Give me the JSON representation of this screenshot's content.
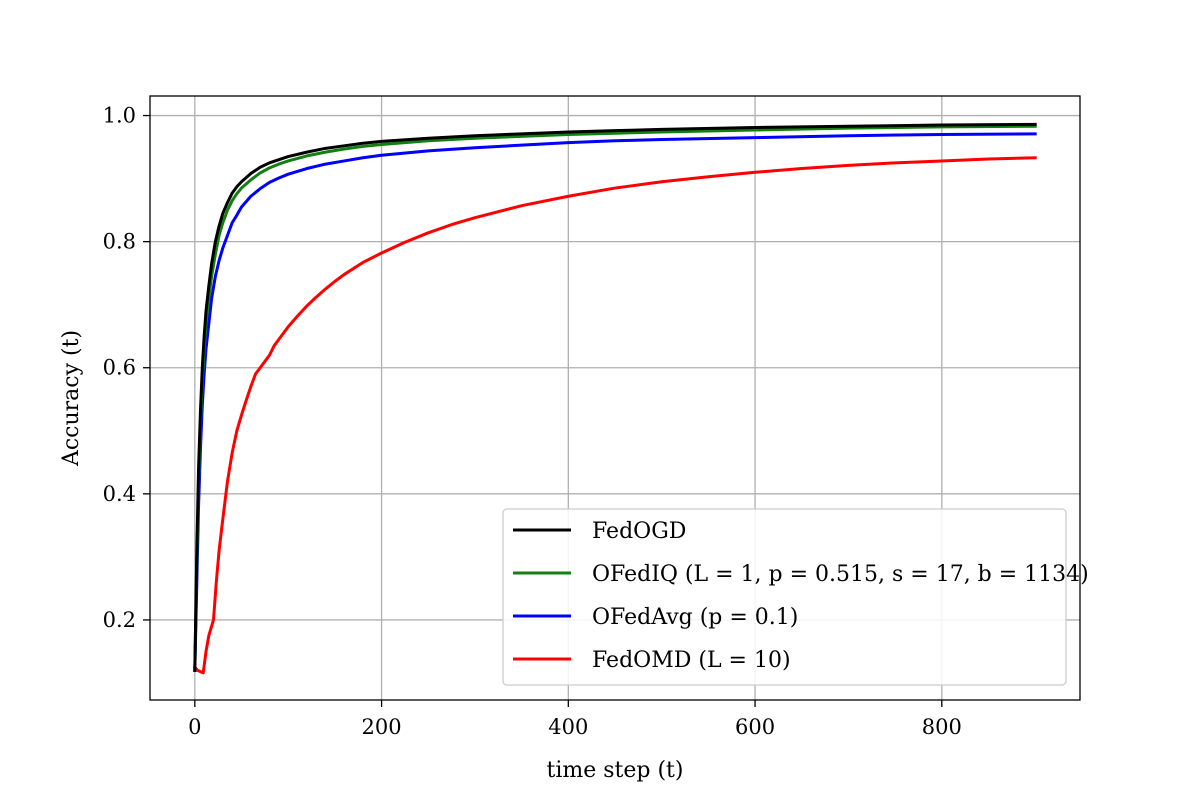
{
  "chart_data": {
    "type": "line",
    "title": "",
    "xlabel": "time step (t)",
    "ylabel": "Accuracy (t)",
    "xlim": [
      -48,
      948
    ],
    "ylim": [
      0.073,
      1.031
    ],
    "xticks": [
      0,
      200,
      400,
      600,
      800
    ],
    "yticks": [
      0.2,
      0.4,
      0.6,
      0.8,
      1.0
    ],
    "xtick_labels": [
      "0",
      "200",
      "400",
      "600",
      "800"
    ],
    "ytick_labels": [
      "0.2",
      "0.4",
      "0.6",
      "0.8",
      "1.0"
    ],
    "grid": true,
    "legend_position": "lower-right",
    "series": [
      {
        "name": "FedOGD",
        "color": "#000000",
        "x": [
          0,
          2,
          4,
          6,
          8,
          10,
          12,
          15,
          18,
          22,
          26,
          30,
          35,
          40,
          45,
          50,
          60,
          70,
          80,
          90,
          100,
          120,
          140,
          160,
          180,
          200,
          250,
          300,
          350,
          400,
          450,
          500,
          600,
          700,
          800,
          900
        ],
        "y": [
          0.12,
          0.3,
          0.44,
          0.53,
          0.6,
          0.65,
          0.69,
          0.73,
          0.765,
          0.8,
          0.825,
          0.845,
          0.862,
          0.877,
          0.887,
          0.895,
          0.908,
          0.918,
          0.925,
          0.93,
          0.935,
          0.942,
          0.948,
          0.952,
          0.956,
          0.959,
          0.964,
          0.968,
          0.971,
          0.974,
          0.976,
          0.978,
          0.981,
          0.983,
          0.985,
          0.986
        ]
      },
      {
        "name": "OFedIQ (L = 1, p = 0.515, s = 17, b = 1134)",
        "color": "#118011",
        "x": [
          0,
          2,
          4,
          6,
          8,
          10,
          12,
          15,
          18,
          22,
          26,
          30,
          35,
          40,
          45,
          50,
          60,
          70,
          80,
          90,
          100,
          120,
          140,
          160,
          180,
          200,
          250,
          300,
          350,
          400,
          450,
          500,
          600,
          700,
          800,
          900
        ],
        "y": [
          0.12,
          0.28,
          0.42,
          0.51,
          0.58,
          0.63,
          0.67,
          0.71,
          0.745,
          0.78,
          0.81,
          0.83,
          0.85,
          0.865,
          0.876,
          0.885,
          0.898,
          0.909,
          0.917,
          0.923,
          0.928,
          0.936,
          0.942,
          0.947,
          0.951,
          0.954,
          0.96,
          0.964,
          0.967,
          0.97,
          0.972,
          0.974,
          0.977,
          0.98,
          0.982,
          0.983
        ]
      },
      {
        "name": "OFedAvg (p = 0.1)",
        "color": "#0000ff",
        "x": [
          0,
          2,
          4,
          6,
          8,
          10,
          12,
          15,
          18,
          22,
          26,
          30,
          35,
          40,
          45,
          50,
          60,
          70,
          80,
          90,
          100,
          120,
          140,
          160,
          180,
          200,
          250,
          300,
          350,
          400,
          450,
          500,
          600,
          700,
          800,
          900
        ],
        "y": [
          0.12,
          0.25,
          0.38,
          0.47,
          0.54,
          0.59,
          0.63,
          0.67,
          0.71,
          0.745,
          0.77,
          0.79,
          0.81,
          0.83,
          0.842,
          0.855,
          0.872,
          0.884,
          0.894,
          0.901,
          0.907,
          0.916,
          0.923,
          0.928,
          0.933,
          0.937,
          0.944,
          0.949,
          0.953,
          0.957,
          0.96,
          0.962,
          0.965,
          0.968,
          0.97,
          0.971
        ]
      },
      {
        "name": "FedOMD (L = 10)",
        "color": "#ff0000",
        "x": [
          0,
          3,
          6,
          9,
          12,
          15,
          18,
          20,
          23,
          26,
          30,
          35,
          40,
          45,
          50,
          55,
          60,
          65,
          70,
          75,
          80,
          85,
          90,
          100,
          110,
          120,
          130,
          140,
          150,
          160,
          180,
          200,
          225,
          250,
          275,
          300,
          350,
          400,
          450,
          500,
          550,
          600,
          650,
          700,
          750,
          800,
          850,
          900
        ],
        "y": [
          0.125,
          0.12,
          0.118,
          0.116,
          0.15,
          0.175,
          0.19,
          0.2,
          0.26,
          0.31,
          0.36,
          0.42,
          0.465,
          0.5,
          0.525,
          0.548,
          0.57,
          0.59,
          0.6,
          0.61,
          0.62,
          0.635,
          0.645,
          0.665,
          0.682,
          0.698,
          0.712,
          0.725,
          0.737,
          0.748,
          0.767,
          0.782,
          0.799,
          0.814,
          0.827,
          0.838,
          0.857,
          0.872,
          0.885,
          0.895,
          0.903,
          0.91,
          0.916,
          0.921,
          0.925,
          0.928,
          0.931,
          0.933
        ]
      }
    ]
  }
}
